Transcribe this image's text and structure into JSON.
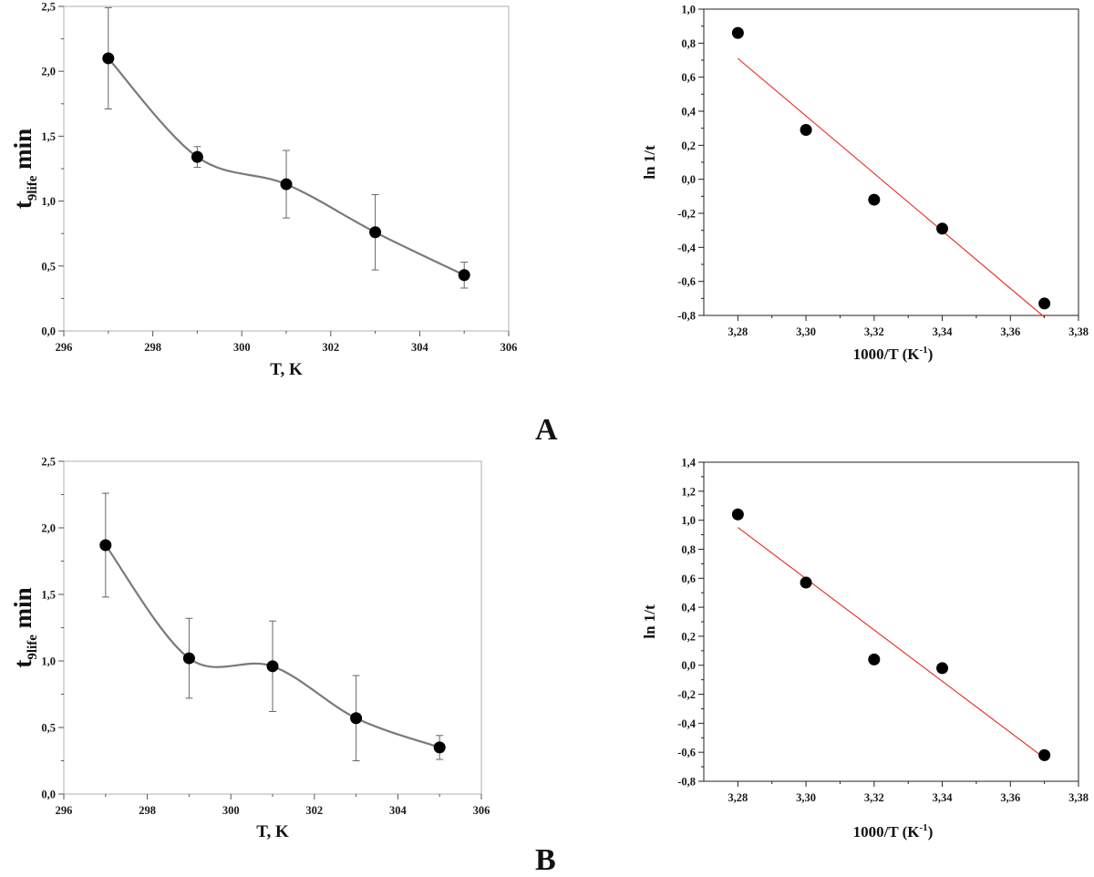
{
  "panels": [
    {
      "label": "A"
    },
    {
      "label": "B"
    }
  ],
  "chart_data": [
    {
      "id": "A-left",
      "type": "line",
      "xlabel": "T, K",
      "ylabel_main": "t",
      "ylabel_sub": "9life",
      "ylabel_tail": "min",
      "xlim": [
        296,
        306
      ],
      "ylim": [
        0,
        2.5
      ],
      "xticks": [
        "296",
        "298",
        "300",
        "302",
        "304",
        "306"
      ],
      "yticks": [
        "0,0",
        "0,5",
        "1,0",
        "1,5",
        "2,0",
        "2,5"
      ],
      "grid": false,
      "series": [
        {
          "x": [
            297,
            299,
            301,
            303,
            305
          ],
          "values": [
            2.1,
            1.34,
            1.13,
            0.76,
            0.43
          ],
          "error": [
            0.39,
            0.08,
            0.26,
            0.29,
            0.1
          ],
          "markers": "filled-circle",
          "line": "smooth",
          "color": "#7a7a7a"
        }
      ]
    },
    {
      "id": "A-right",
      "type": "scatter",
      "xlabel": "1000/T (K",
      "xlabel_sup": "-1",
      "xlabel_tail": ")",
      "ylabel": "ln 1/t",
      "xlim": [
        3.27,
        3.38
      ],
      "ylim": [
        -0.8,
        1.0
      ],
      "xticks": [
        "3,28",
        "3,30",
        "3,32",
        "3,34",
        "3,36",
        "3,38"
      ],
      "yticks": [
        "-0,8",
        "-0,6",
        "-0,4",
        "-0,2",
        "0,0",
        "0,2",
        "0,4",
        "0,6",
        "0,8",
        "1,0"
      ],
      "grid": false,
      "series": [
        {
          "x": [
            3.28,
            3.3,
            3.32,
            3.34,
            3.37
          ],
          "values": [
            0.86,
            0.29,
            -0.12,
            -0.29,
            -0.73
          ],
          "markers": "filled-circle"
        }
      ],
      "fit": {
        "x": [
          3.28,
          3.37
        ],
        "values": [
          0.71,
          -0.81
        ],
        "color": "#e8271f"
      }
    },
    {
      "id": "B-left",
      "type": "line",
      "xlabel": "T, K",
      "ylabel_main": "t",
      "ylabel_sub": "9life",
      "ylabel_tail": "min",
      "xlim": [
        296,
        306
      ],
      "ylim": [
        0,
        2.5
      ],
      "xticks": [
        "296",
        "298",
        "300",
        "302",
        "304",
        "306"
      ],
      "yticks": [
        "0,0",
        "0,5",
        "1,0",
        "1,5",
        "2,0",
        "2,5"
      ],
      "grid": false,
      "series": [
        {
          "x": [
            297,
            299,
            301,
            303,
            305
          ],
          "values": [
            1.87,
            1.02,
            0.96,
            0.57,
            0.35
          ],
          "error": [
            0.39,
            0.3,
            0.34,
            0.32,
            0.09
          ],
          "markers": "filled-circle",
          "line": "smooth",
          "color": "#7a7a7a"
        }
      ]
    },
    {
      "id": "B-right",
      "type": "scatter",
      "xlabel": "1000/T (K",
      "xlabel_sup": "-1",
      "xlabel_tail": ")",
      "ylabel": "ln 1/t",
      "xlim": [
        3.27,
        3.38
      ],
      "ylim": [
        -0.8,
        1.4
      ],
      "xticks": [
        "3,28",
        "3,30",
        "3,32",
        "3,34",
        "3,36",
        "3,38"
      ],
      "yticks": [
        "-0,8",
        "-0,6",
        "-0,4",
        "-0,2",
        "0,0",
        "0,2",
        "0,4",
        "0,6",
        "0,8",
        "1,0",
        "1,2",
        "1,4"
      ],
      "grid": false,
      "series": [
        {
          "x": [
            3.28,
            3.3,
            3.32,
            3.34,
            3.37
          ],
          "values": [
            1.04,
            0.57,
            0.04,
            -0.02,
            -0.62
          ],
          "markers": "filled-circle"
        }
      ],
      "fit": {
        "x": [
          3.28,
          3.37
        ],
        "values": [
          0.95,
          -0.64
        ],
        "color": "#e8271f"
      }
    }
  ]
}
